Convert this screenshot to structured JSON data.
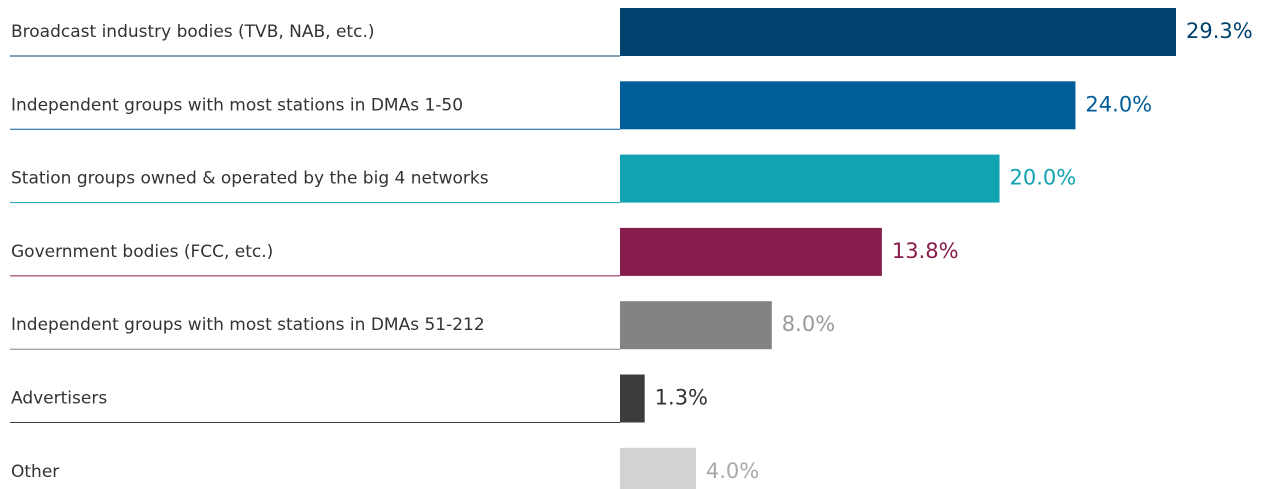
{
  "chart_data": {
    "type": "hbar",
    "categories": [
      "Broadcast industry bodies (TVB, NAB, etc.)",
      "Independent groups with most stations in DMAs 1-50",
      "Station groups owned & operated by the big 4 networks",
      "Government bodies (FCC, etc.)",
      "Independent groups with most stations in DMAs 51-212",
      "Advertisers",
      "Other"
    ],
    "values": [
      29.3,
      24.0,
      20.0,
      13.8,
      8.0,
      1.3,
      4.0
    ],
    "value_labels": [
      "29.3%",
      "24.0%",
      "20.0%",
      "13.8%",
      "8.0%",
      "1.3%",
      "4.0%"
    ],
    "colors": [
      "#00416e",
      "#005d99",
      "#11a3b2",
      "#871d4c",
      "#838386",
      "#3c3c3c",
      "#d1d2d4"
    ],
    "label_colors": [
      "#00416e",
      "#005d99",
      "#11a3b2",
      "#871d4c",
      "#9a9a9c",
      "#333333",
      "#a9a9ab"
    ]
  }
}
